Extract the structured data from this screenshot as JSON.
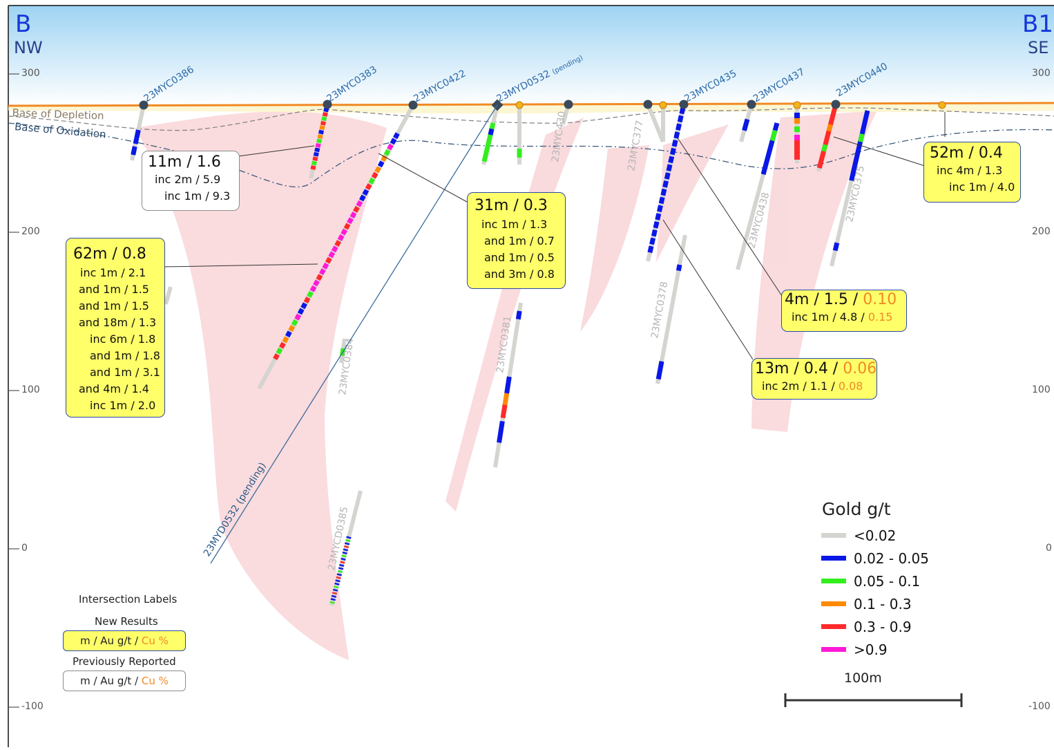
{
  "section": {
    "start": "B",
    "end": "B1",
    "start_dir": "NW",
    "end_dir": "SE"
  },
  "elevations": {
    "left": [
      "300",
      "200",
      "100",
      "0",
      "-100"
    ],
    "right": [
      "300",
      "200",
      "100",
      "0",
      "-100"
    ]
  },
  "surfaces": {
    "depletion": "Base of Depletion",
    "oxidation": "Base of Oxidation"
  },
  "holes": [
    {
      "id": "23MYC0386"
    },
    {
      "id": "23MYC0383"
    },
    {
      "id": "23MYC0422"
    },
    {
      "id": "23MYD0532",
      "note": "(pending)"
    },
    {
      "id": "23MYC0435"
    },
    {
      "id": "23MYC0437"
    },
    {
      "id": "23MYC0440"
    },
    {
      "id": "23MYC430"
    },
    {
      "id": "23MYC377"
    },
    {
      "id": "23MYC0438"
    },
    {
      "id": "23MYC0375"
    },
    {
      "id": "23MYC0378"
    },
    {
      "id": "23MYC0381"
    },
    {
      "id": "23MYC0384"
    },
    {
      "id": "23MYCD0385"
    },
    {
      "id": "23MYD0532 (pending)"
    }
  ],
  "intersections": [
    {
      "kind": "prev",
      "head": "11m / 1.6",
      "lines": [
        "inc 2m / 5.9",
        "inc 1m / 9.3"
      ]
    },
    {
      "kind": "new",
      "head": "62m / 0.8",
      "lines": [
        "inc 1m / 2.1",
        "and 1m / 1.5",
        "and 1m / 1.5",
        "and 18m / 1.3",
        "inc 6m / 1.8",
        "and 1m / 1.8",
        "and 1m / 3.1",
        "and 4m / 1.4",
        "inc 1m / 2.0"
      ]
    },
    {
      "kind": "new",
      "head": "31m / 0.3",
      "lines": [
        "inc 1m / 1.3",
        "and 1m / 0.7",
        "and 1m / 0.5",
        "and 3m / 0.8"
      ]
    },
    {
      "kind": "new",
      "head": "52m / 0.4",
      "lines": [
        "inc 4m / 1.3",
        "inc 1m / 4.0"
      ]
    },
    {
      "kind": "new",
      "head": "4m / 1.5 / ",
      "head_cu": "0.10",
      "line": "inc  1m / 4.8 / ",
      "line_cu": "0.15"
    },
    {
      "kind": "new",
      "head": "13m / 0.4 / ",
      "head_cu": "0.06",
      "line": "inc  2m / 1.1 / ",
      "line_cu": "0.08"
    }
  ],
  "legend": {
    "title": "Gold g/t",
    "items": [
      {
        "label": "<0.02",
        "color": "#d4d4d0"
      },
      {
        "label": "0.02 - 0.05",
        "color": "#0a18e6"
      },
      {
        "label": "0.05 - 0.1",
        "color": "#33ee1e"
      },
      {
        "label": "0.1 - 0.3",
        "color": "#ff8a00"
      },
      {
        "label": "0.3 - 0.9",
        "color": "#ff2a2a"
      },
      {
        "label": ">0.9",
        "color": "#ff1ad8"
      }
    ],
    "scale_label": "100m"
  },
  "key": {
    "title": "Intersection Labels",
    "new_label": "New Results",
    "prev_label": "Previously Reported",
    "format": "m  /  Au g/t / ",
    "format_cu": "Cu %"
  },
  "colors": {
    "accent_orange": "#f08a24",
    "new_fill": "#ffff6a",
    "zone_pink": "#f9d7da",
    "sky_top": "#9ed3f3"
  }
}
